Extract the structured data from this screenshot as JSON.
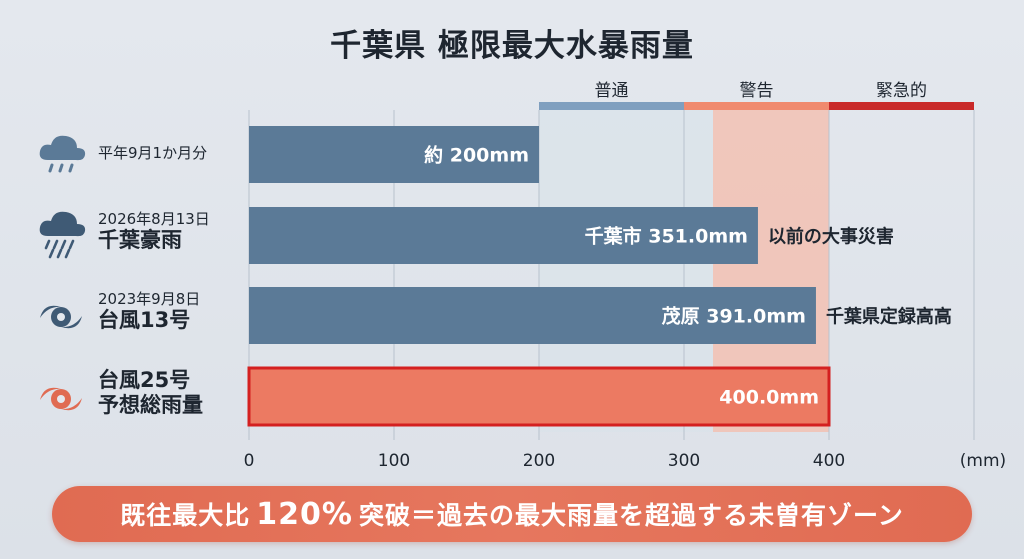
{
  "title": "千葉県 極限最大水暴雨量",
  "zones": [
    {
      "label": "普通",
      "from": 200,
      "to": 300,
      "color": "#7f9fbf"
    },
    {
      "label": "警告",
      "from": 300,
      "to": 400,
      "color": "#f08a6e"
    },
    {
      "label": "緊急的",
      "from": 400,
      "to": 500,
      "color": "#c92a2a"
    }
  ],
  "rows": [
    {
      "line1": "平年9月1か月分",
      "line2": "",
      "icon": "cloud-rain-icon"
    },
    {
      "line1": "2026年8月13日",
      "line2": "千葉豪雨",
      "icon": "cloud-heavy-rain-icon"
    },
    {
      "line1": "2023年9月8日",
      "line2": "台風13号",
      "icon": "typhoon-icon"
    },
    {
      "line1": "台風25号",
      "line2": "予想総雨量",
      "icon": "typhoon-red-icon"
    }
  ],
  "banner": {
    "prefix": "既往最大比",
    "percent": "120%",
    "suffix": "突破＝過去の最大雨量を超過する未曽有ゾーン"
  },
  "chart_data": {
    "type": "bar",
    "orientation": "horizontal",
    "title": "千葉県 極限最大水暴雨量",
    "unit_label": "(mm)",
    "xlim": [
      0,
      500
    ],
    "xticks": [
      0,
      100,
      200,
      300,
      400
    ],
    "grid": true,
    "values": [
      200,
      351.0,
      391.0,
      400.0
    ],
    "colors": [
      "#5b7a97",
      "#5b7a97",
      "#5b7a97",
      "#ec7a62"
    ],
    "bar_texts": [
      "約 200mm",
      "千葉市 351.0mm",
      "茂原 391.0mm",
      "400.0mm"
    ],
    "annotations": [
      "",
      "以前の大事災害",
      "千葉県定録高高",
      ""
    ]
  }
}
